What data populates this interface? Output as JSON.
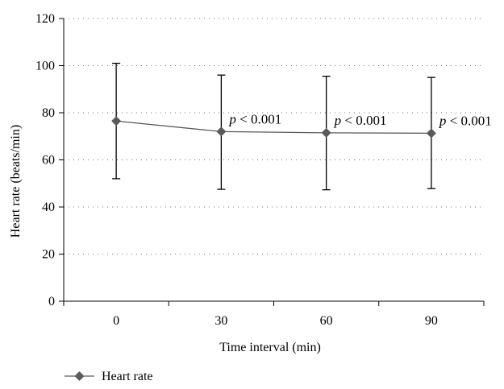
{
  "chart_data": {
    "type": "line",
    "xlabel": "Time interval (min)",
    "ylabel": "Heart rate (beats/min)",
    "ylim": [
      0,
      120
    ],
    "y_ticks": [
      0,
      20,
      40,
      60,
      80,
      100,
      120
    ],
    "categories": [
      "0",
      "30",
      "60",
      "90"
    ],
    "grid": true,
    "legend_position": "bottom-left",
    "series": [
      {
        "name": "Heart rate",
        "color": "#5a5a5a",
        "marker": "diamond",
        "values": [
          76.5,
          72,
          71.5,
          71.3
        ],
        "error_upper": [
          101,
          96,
          95.5,
          95
        ],
        "error_lower": [
          52,
          47.5,
          47.3,
          47.8
        ]
      }
    ],
    "annotations": [
      {
        "category": "30",
        "italic": "p",
        "text": " < 0.001"
      },
      {
        "category": "60",
        "italic": "p",
        "text": " < 0.001"
      },
      {
        "category": "90",
        "italic": "p",
        "text": " < 0.001"
      }
    ]
  }
}
